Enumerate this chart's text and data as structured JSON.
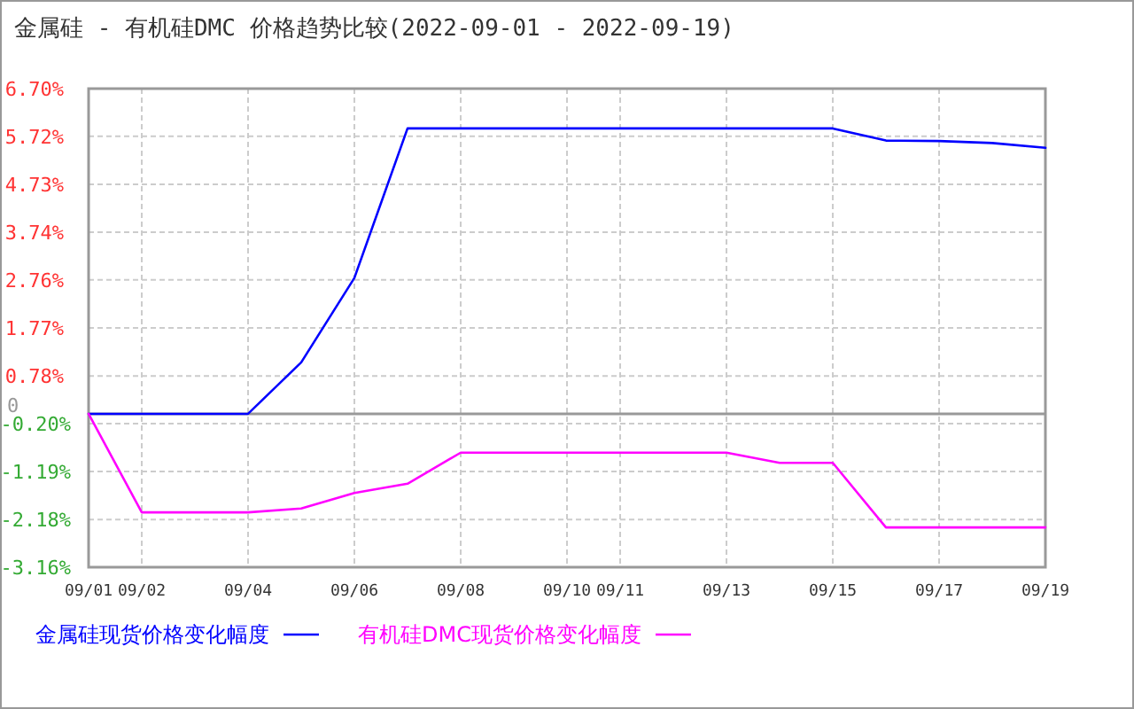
{
  "chart_data": {
    "type": "line",
    "title": "金属硅 - 有机硅DMC 价格趋势比较(2022-09-01 - 2022-09-19)",
    "categories": [
      "09/01",
      "09/02",
      null,
      "09/04",
      null,
      "09/06",
      null,
      "09/08",
      null,
      "09/10",
      "09/11",
      null,
      "09/13",
      null,
      "09/15",
      null,
      "09/17",
      null,
      "09/19"
    ],
    "series": [
      {
        "name": "金属硅现货价格变化幅度",
        "color": "#0000ff",
        "values": [
          0,
          0,
          0,
          0,
          1.06,
          2.8,
          5.88,
          5.88,
          5.88,
          5.88,
          5.88,
          5.88,
          5.88,
          5.88,
          5.88,
          5.63,
          5.62,
          5.58,
          5.48
        ]
      },
      {
        "name": "有机硅DMC现货价格变化幅度",
        "color": "#ff00ff",
        "values": [
          0,
          -2.03,
          -2.03,
          -2.03,
          -1.95,
          -1.63,
          -1.44,
          -0.8,
          -0.8,
          -0.8,
          -0.8,
          -0.8,
          -0.8,
          -1.01,
          -1.01,
          -2.34,
          -2.34,
          -2.34,
          -2.34
        ]
      }
    ],
    "ylim": [
      -3.16,
      6.7
    ],
    "yticks": [
      {
        "value": 6.7,
        "label": "6.70%"
      },
      {
        "value": 5.72,
        "label": "5.72%"
      },
      {
        "value": 4.73,
        "label": "4.73%"
      },
      {
        "value": 3.74,
        "label": "3.74%"
      },
      {
        "value": 2.76,
        "label": "2.76%"
      },
      {
        "value": 1.77,
        "label": "1.77%"
      },
      {
        "value": 0.78,
        "label": "0.78%"
      },
      {
        "value": 0,
        "label": "0"
      },
      {
        "value": -0.2,
        "label": "-0.20%"
      },
      {
        "value": -1.19,
        "label": "-1.19%"
      },
      {
        "value": -2.18,
        "label": "-2.18%"
      },
      {
        "value": -3.16,
        "label": "-3.16%"
      }
    ],
    "grid": true,
    "legend": "bottom",
    "marker": "none",
    "line_style": "solid"
  }
}
